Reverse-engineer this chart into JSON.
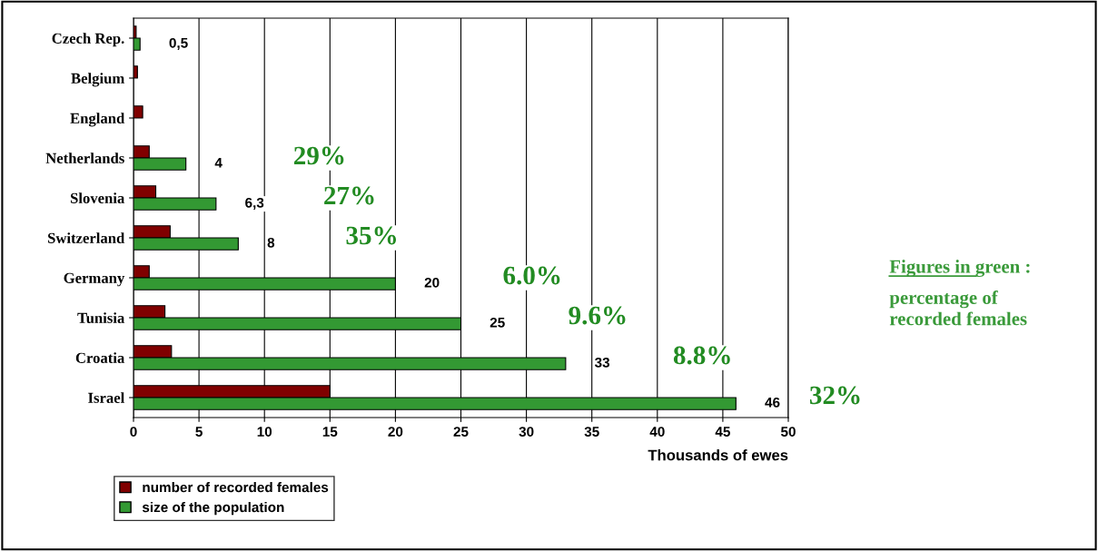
{
  "chart_data": {
    "type": "bar",
    "orientation": "horizontal",
    "categories": [
      "Czech Rep.",
      "Belgium",
      "England",
      "Netherlands",
      "Slovenia",
      "Switzerland",
      "Germany",
      "Tunisia",
      "Croatia",
      "Israel"
    ],
    "series": [
      {
        "name": "number of recorded females",
        "color": "#800000",
        "values": [
          0.2,
          0.3,
          0.7,
          1.2,
          1.7,
          2.8,
          1.2,
          2.4,
          2.9,
          15
        ]
      },
      {
        "name": "size of the population",
        "color": "#339933",
        "values": [
          0.5,
          null,
          null,
          4,
          6.3,
          8,
          20,
          25,
          33,
          46
        ],
        "value_labels": [
          "0,5",
          null,
          null,
          "4",
          "6,3",
          "8",
          "20",
          "25",
          "33",
          "46"
        ]
      }
    ],
    "xlabel": "Thousands of ewes",
    "xlim": [
      0,
      50
    ],
    "xticks": [
      0,
      5,
      10,
      15,
      20,
      25,
      30,
      35,
      40,
      45,
      50
    ],
    "grid": "x",
    "legend": "bottom left",
    "annotations": [
      "29%",
      "27%",
      "35%",
      "6.0%",
      "9.6%",
      "8.8%",
      "32%",
      "Figures in green : percentage of recorded females"
    ]
  }
}
